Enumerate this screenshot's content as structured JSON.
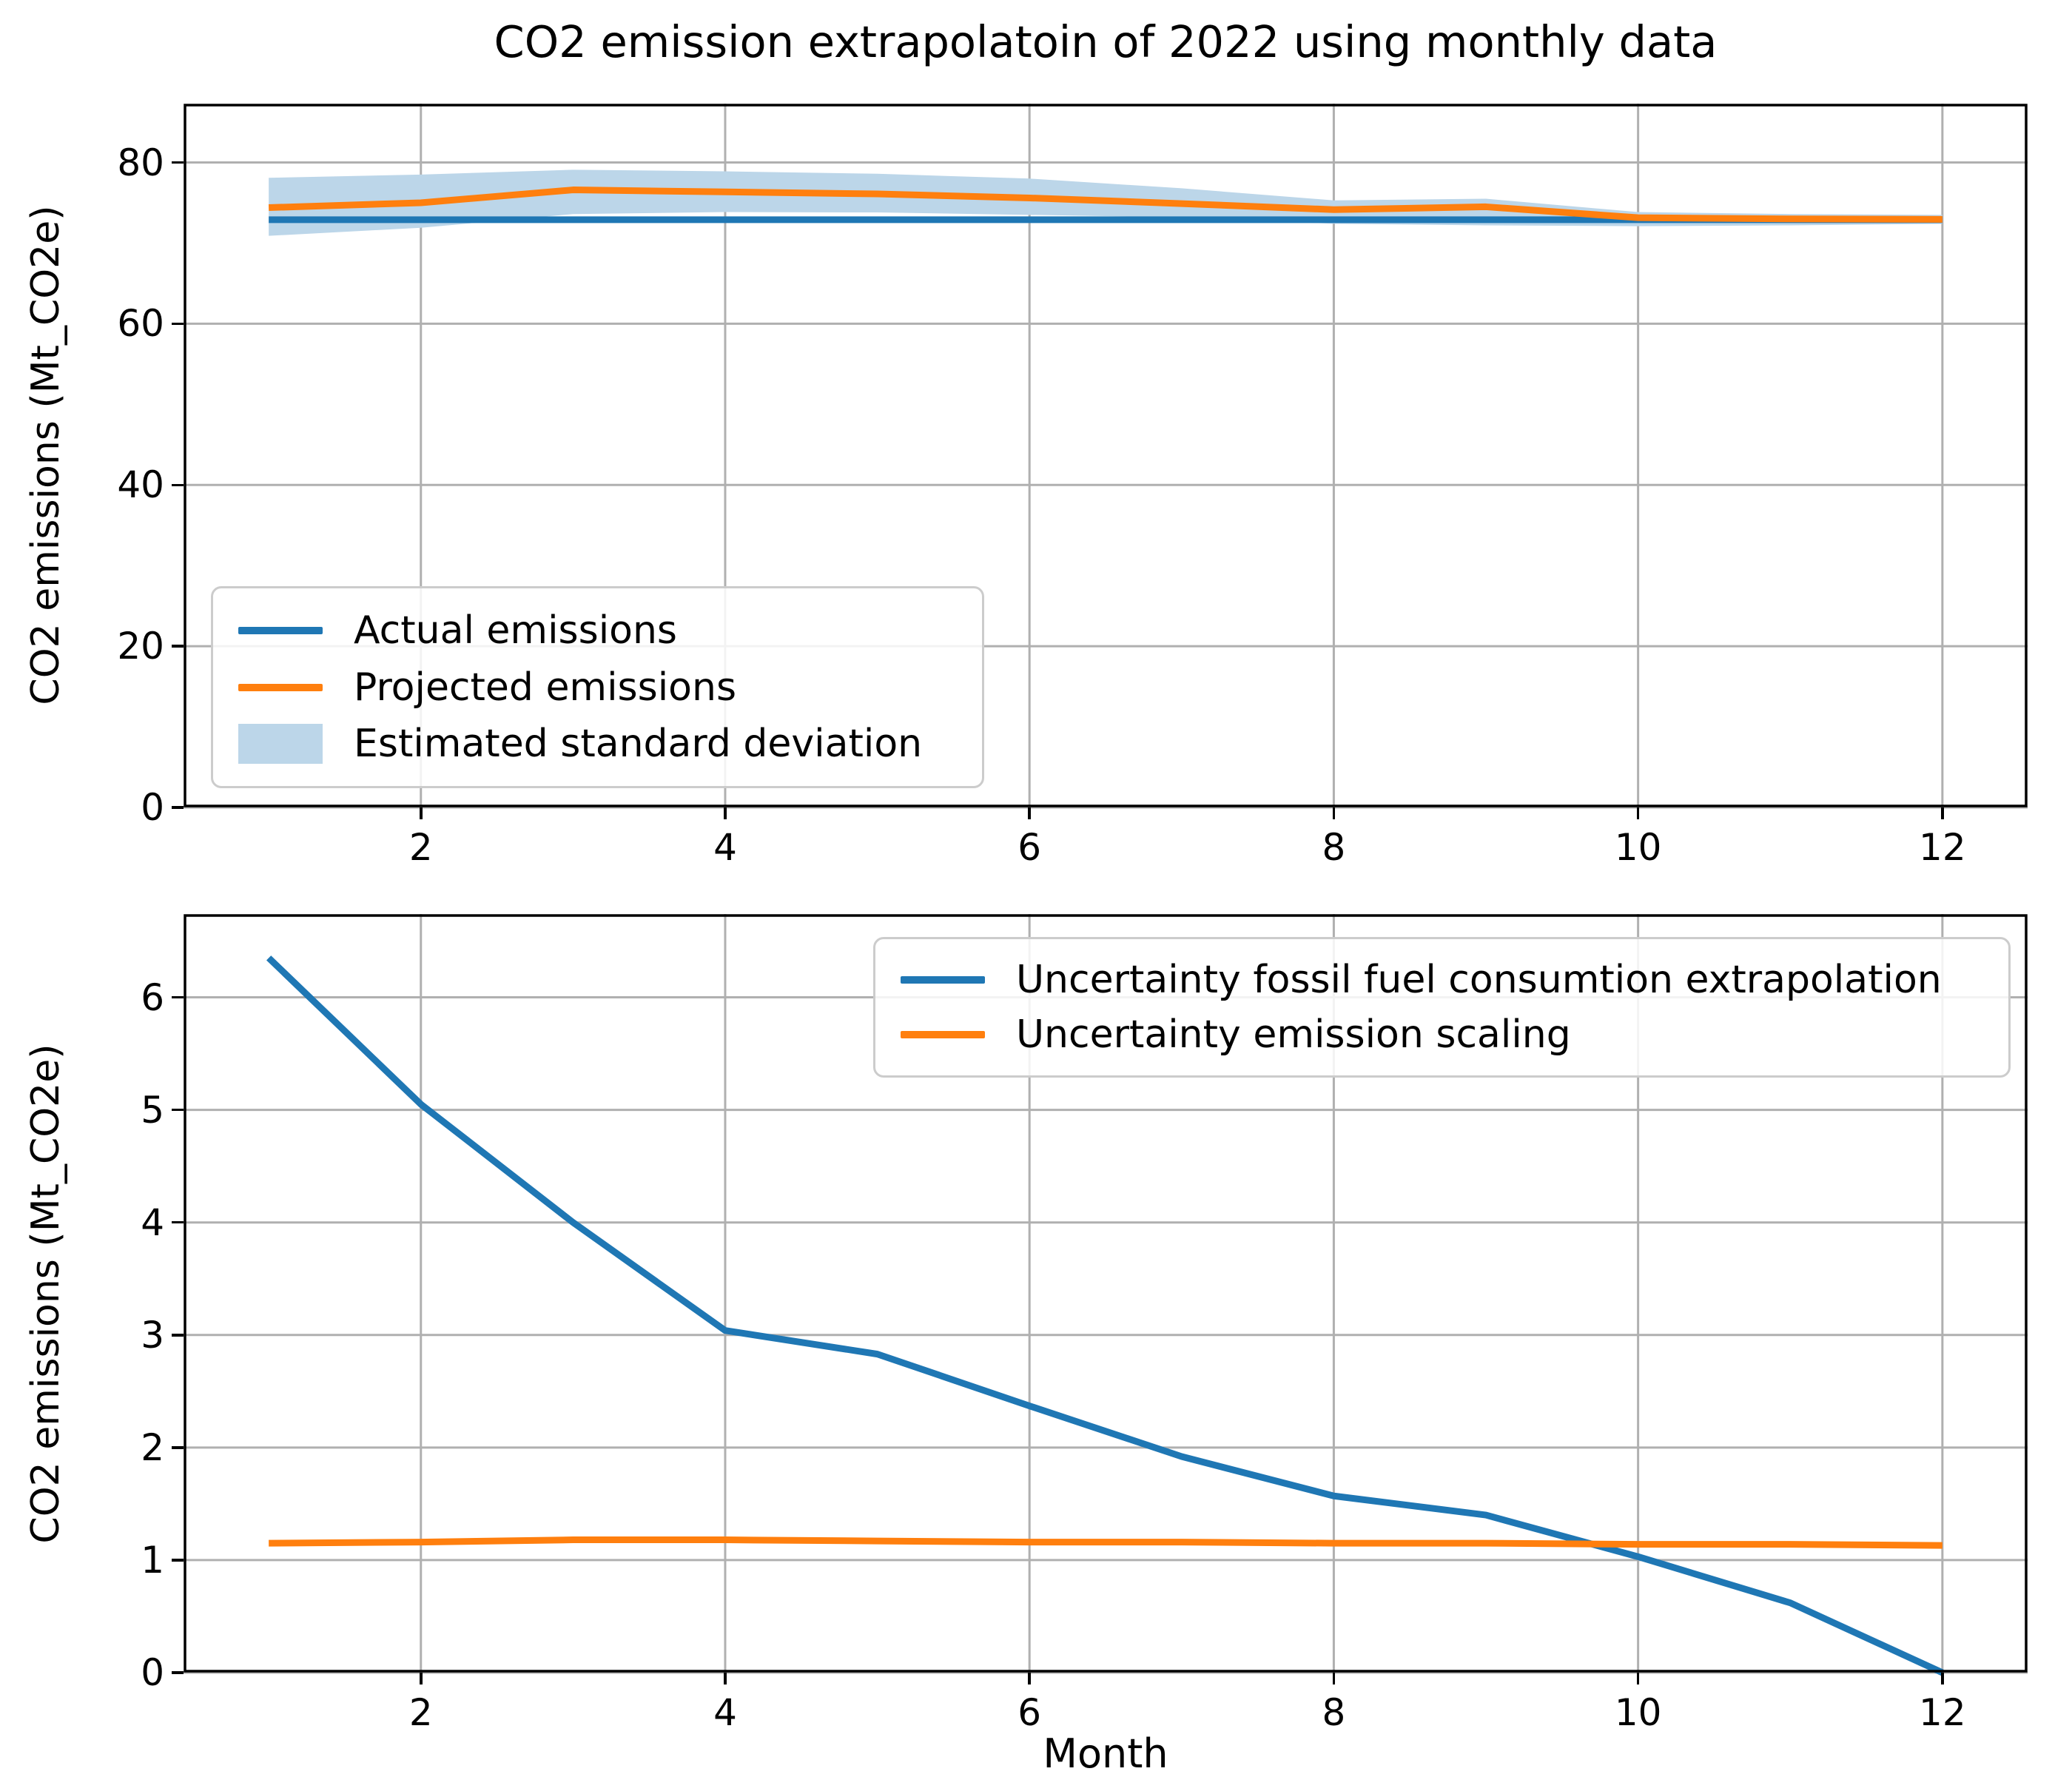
{
  "figure_title": "CO2 emission extrapolatoin of 2022 using monthly data",
  "chart_data": [
    {
      "type": "line",
      "title": "CO2 emission extrapolatoin of 2022 using monthly data",
      "xlabel": "",
      "ylabel": "CO2 emissions (Mt_CO2e)",
      "x": [
        1,
        2,
        3,
        4,
        5,
        6,
        7,
        8,
        9,
        10,
        11,
        12
      ],
      "xlim": [
        0.44,
        12.56
      ],
      "ylim": [
        0,
        87.3
      ],
      "xticks": [
        2,
        4,
        6,
        8,
        10,
        12
      ],
      "yticks": [
        0,
        20,
        40,
        60,
        80
      ],
      "grid": true,
      "legend_position": "lower left",
      "series": [
        {
          "name": "Actual emissions",
          "color": "#1f77b4",
          "values": [
            72.9,
            72.9,
            72.9,
            72.9,
            72.9,
            72.9,
            72.9,
            72.9,
            72.9,
            72.9,
            72.9,
            72.9
          ]
        },
        {
          "name": "Projected emissions",
          "color": "#ff7f0e",
          "values": [
            74.4,
            75.0,
            76.6,
            76.35,
            76.1,
            75.6,
            74.9,
            74.15,
            74.5,
            73.15,
            73.0,
            72.95
          ]
        }
      ],
      "band": {
        "name": "Estimated standard deviation",
        "color": "#bcd6e9",
        "upper": [
          78.1,
          78.5,
          79.1,
          78.9,
          78.6,
          78.0,
          76.8,
          75.3,
          75.5,
          73.85,
          73.6,
          73.5
        ],
        "lower": [
          70.9,
          71.9,
          73.6,
          73.85,
          73.8,
          73.5,
          73.2,
          72.4,
          72.2,
          72.1,
          72.2,
          72.4
        ]
      }
    },
    {
      "type": "line",
      "title": "",
      "xlabel": "Month",
      "ylabel": "CO2 emissions (Mt_CO2e)",
      "x": [
        1,
        2,
        3,
        4,
        5,
        6,
        7,
        8,
        9,
        10,
        11,
        12
      ],
      "xlim": [
        0.44,
        12.56
      ],
      "ylim": [
        0,
        6.74
      ],
      "xticks": [
        2,
        4,
        6,
        8,
        10,
        12
      ],
      "yticks": [
        0,
        1,
        2,
        3,
        4,
        5,
        6
      ],
      "grid": true,
      "legend_position": "upper right",
      "series": [
        {
          "name": "Uncertainty fossil fuel consumtion extrapolation",
          "color": "#1f77b4",
          "values": [
            6.35,
            5.05,
            4.0,
            3.04,
            2.83,
            2.37,
            1.92,
            1.57,
            1.4,
            1.03,
            0.62,
            0.0
          ]
        },
        {
          "name": "Uncertainty emission scaling",
          "color": "#ff7f0e",
          "values": [
            1.15,
            1.16,
            1.18,
            1.18,
            1.17,
            1.16,
            1.16,
            1.15,
            1.15,
            1.14,
            1.14,
            1.13
          ]
        }
      ]
    }
  ],
  "style": {
    "grid_color": "#b0b0b0",
    "spine_color": "#000000",
    "background": "#ffffff"
  }
}
